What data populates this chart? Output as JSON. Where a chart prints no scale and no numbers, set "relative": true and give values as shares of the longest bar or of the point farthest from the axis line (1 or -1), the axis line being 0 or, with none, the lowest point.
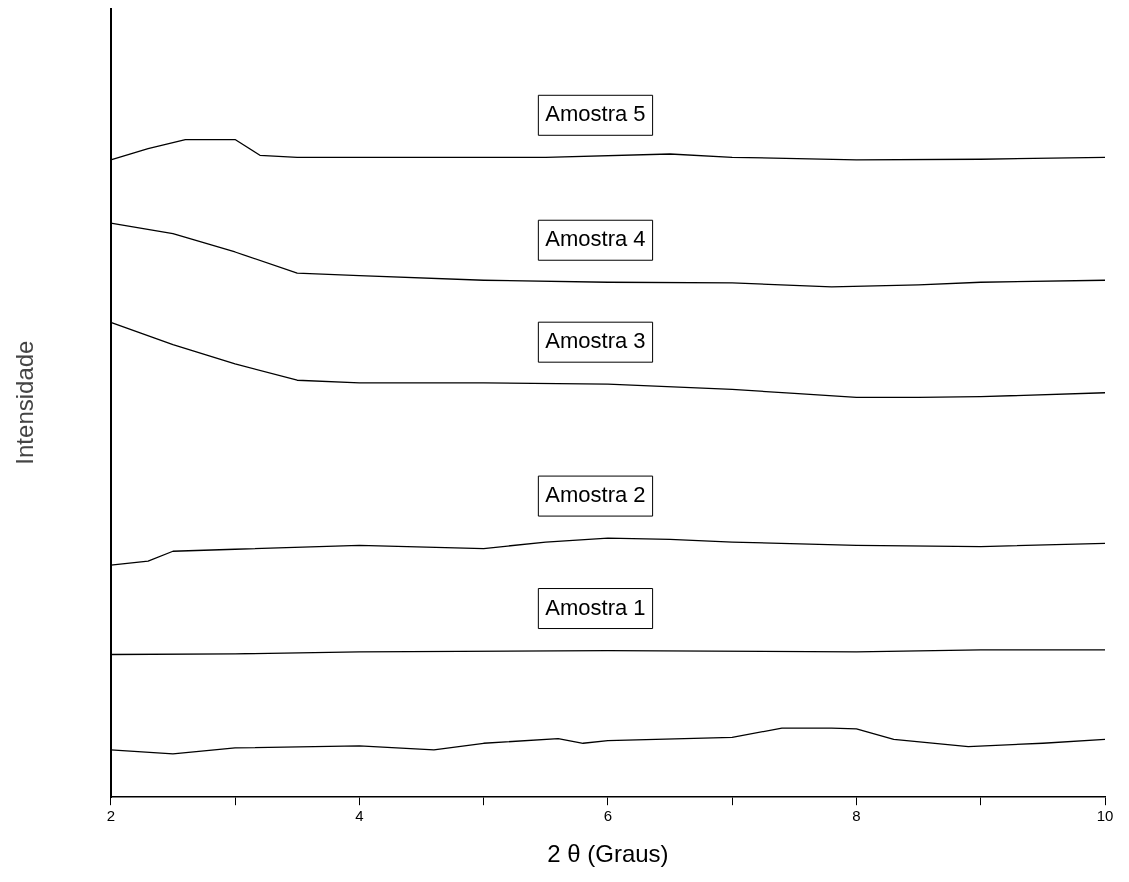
{
  "chart_data": {
    "type": "line",
    "xlabel": "2 θ (Graus)",
    "ylabel": "Intensidade",
    "relative": true,
    "xlim": [
      2,
      10
    ],
    "xticks": [
      2,
      {
        "value": 3,
        "label": null
      },
      4,
      {
        "value": 5,
        "label": null
      },
      6,
      {
        "value": 7,
        "label": null
      },
      8,
      {
        "value": 9,
        "label": null
      },
      10
    ],
    "grid": false,
    "legend": false,
    "tick_labels": "x",
    "marker": "none",
    "line_style": "solid",
    "series": [
      {
        "name": "Amostra 5",
        "color": "#000000",
        "x": [
          2,
          2.3,
          2.6,
          3.0,
          3.2,
          3.5,
          4.5,
          5.5,
          6.5,
          7,
          8,
          9,
          10
        ],
        "values": [
          0.969,
          0.986,
          1.0,
          1.0,
          0.976,
          0.973,
          0.973,
          0.973,
          0.978,
          0.973,
          0.969,
          0.97,
          0.973
        ]
      },
      {
        "name": "Amostra 4",
        "color": "#000000",
        "x": [
          2,
          2.5,
          3.0,
          3.5,
          4,
          5,
          6,
          7,
          7.8,
          8.5,
          9,
          10
        ],
        "values": [
          0.873,
          0.857,
          0.829,
          0.797,
          0.793,
          0.786,
          0.783,
          0.782,
          0.776,
          0.779,
          0.783,
          0.786
        ]
      },
      {
        "name": "Amostra 3",
        "color": "#000000",
        "x": [
          2,
          2.5,
          3.0,
          3.5,
          4,
          5,
          6,
          7,
          7.5,
          8,
          8.5,
          9,
          10
        ],
        "values": [
          0.722,
          0.688,
          0.659,
          0.634,
          0.63,
          0.63,
          0.628,
          0.62,
          0.614,
          0.608,
          0.608,
          0.609,
          0.615
        ]
      },
      {
        "name": "Amostra 2",
        "color": "#000000",
        "x": [
          2,
          2.3,
          2.5,
          3,
          4,
          5,
          5.5,
          6,
          6.5,
          7,
          8,
          9,
          10
        ],
        "values": [
          0.353,
          0.359,
          0.374,
          0.377,
          0.383,
          0.378,
          0.388,
          0.394,
          0.392,
          0.388,
          0.383,
          0.381,
          0.386
        ]
      },
      {
        "name": "Amostra 1",
        "color": "#000000",
        "x": [
          2,
          3,
          4,
          6,
          8,
          9,
          10
        ],
        "values": [
          0.217,
          0.218,
          0.221,
          0.223,
          0.221,
          0.224,
          0.224
        ]
      },
      {
        "color": "#000000",
        "x": [
          2,
          2.5,
          3,
          4,
          4.6,
          5,
          5.6,
          5.8,
          6,
          7,
          7.4,
          7.8,
          8,
          8.3,
          8.9,
          9.5,
          10
        ],
        "values": [
          0.072,
          0.066,
          0.075,
          0.078,
          0.072,
          0.082,
          0.089,
          0.082,
          0.086,
          0.091,
          0.105,
          0.105,
          0.104,
          0.088,
          0.077,
          0.082,
          0.088
        ]
      }
    ]
  }
}
